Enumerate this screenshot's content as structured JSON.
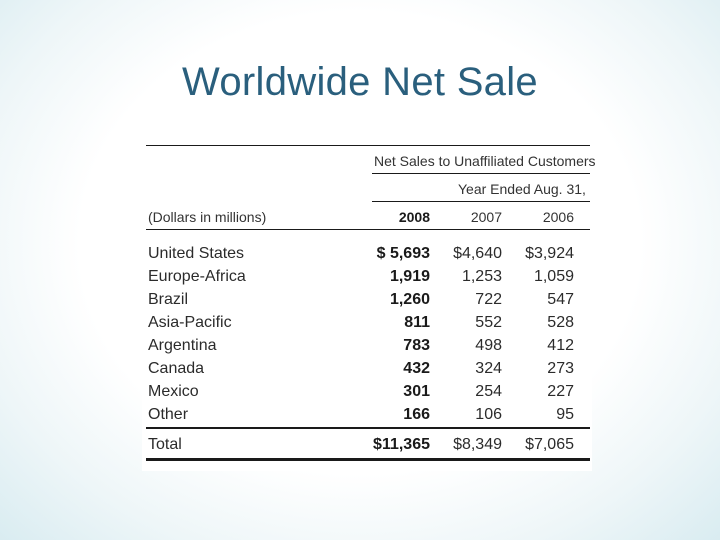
{
  "slide": {
    "title": "Worldwide Net Sale"
  },
  "table": {
    "group_header": "Net Sales to Unaffiliated Customers",
    "sub_header": "Year Ended Aug. 31,",
    "units_label": "(Dollars in millions)",
    "columns": [
      "2008",
      "2007",
      "2006"
    ],
    "rows": [
      {
        "label": "United States",
        "v2008": "$ 5,693",
        "v2007": "$4,640",
        "v2006": "$3,924"
      },
      {
        "label": "Europe-Africa",
        "v2008": "1,919",
        "v2007": "1,253",
        "v2006": "1,059"
      },
      {
        "label": "Brazil",
        "v2008": "1,260",
        "v2007": "722",
        "v2006": "547"
      },
      {
        "label": "Asia-Pacific",
        "v2008": "811",
        "v2007": "552",
        "v2006": "528"
      },
      {
        "label": "Argentina",
        "v2008": "783",
        "v2007": "498",
        "v2006": "412"
      },
      {
        "label": "Canada",
        "v2008": "432",
        "v2007": "324",
        "v2006": "273"
      },
      {
        "label": "Mexico",
        "v2008": "301",
        "v2007": "254",
        "v2006": "227"
      },
      {
        "label": "Other",
        "v2008": "166",
        "v2007": "106",
        "v2006": "95"
      }
    ],
    "total": {
      "label": "Total",
      "v2008": "$11,365",
      "v2007": "$8,349",
      "v2006": "$7,065"
    }
  }
}
